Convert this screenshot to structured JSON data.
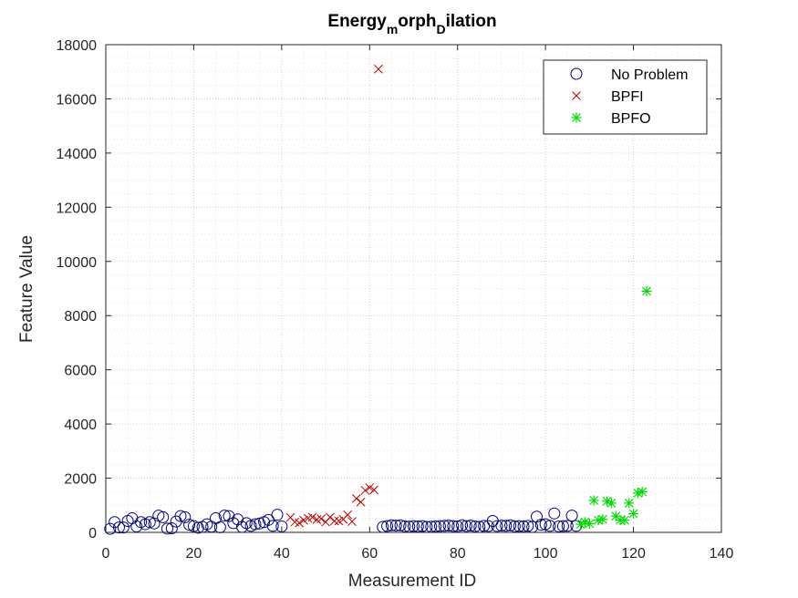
{
  "chart_data": {
    "type": "scatter",
    "title": {
      "base1": "Energy",
      "sub1": "m",
      "base2": "orph",
      "sub2": "D",
      "base3": "ilation"
    },
    "xlabel": "Measurement ID",
    "ylabel": "Feature Value",
    "xlim": [
      0,
      140
    ],
    "ylim": [
      0,
      18000
    ],
    "xticks": [
      "0",
      "20",
      "40",
      "60",
      "80",
      "100",
      "120",
      "140"
    ],
    "yticks": [
      "0",
      "2000",
      "4000",
      "6000",
      "8000",
      "10000",
      "12000",
      "14000",
      "16000",
      "18000"
    ],
    "grid": "major and minor, dotted",
    "legend_position": "top-right",
    "series": [
      {
        "name": "No Problem",
        "marker": "circle",
        "color": "#000080",
        "x": [
          1,
          2,
          3,
          4,
          5,
          6,
          7,
          8,
          9,
          10,
          11,
          12,
          13,
          14,
          15,
          16,
          17,
          18,
          19,
          20,
          21,
          22,
          23,
          24,
          25,
          26,
          27,
          28,
          29,
          30,
          31,
          32,
          33,
          34,
          35,
          36,
          37,
          38,
          39,
          40,
          63,
          64,
          65,
          66,
          67,
          68,
          69,
          70,
          71,
          72,
          73,
          74,
          75,
          76,
          77,
          78,
          79,
          80,
          81,
          82,
          83,
          84,
          85,
          86,
          87,
          88,
          89,
          90,
          91,
          92,
          93,
          94,
          95,
          96,
          97,
          98,
          99,
          100,
          101,
          102,
          103,
          104,
          105,
          106,
          107
        ],
        "y": [
          130,
          380,
          180,
          180,
          420,
          520,
          220,
          380,
          300,
          380,
          330,
          620,
          560,
          140,
          150,
          400,
          600,
          560,
          280,
          230,
          170,
          200,
          300,
          210,
          520,
          190,
          620,
          600,
          340,
          480,
          200,
          340,
          240,
          300,
          330,
          380,
          460,
          240,
          650,
          220,
          200,
          230,
          260,
          250,
          260,
          220,
          210,
          230,
          220,
          230,
          200,
          210,
          220,
          230,
          240,
          250,
          230,
          220,
          260,
          230,
          250,
          220,
          200,
          240,
          230,
          420,
          230,
          250,
          240,
          260,
          220,
          230,
          220,
          240,
          200,
          580,
          280,
          300,
          240,
          700,
          220,
          230,
          240,
          620,
          240
        ]
      },
      {
        "name": "BPFI",
        "marker": "x",
        "color": "#c00000",
        "x": [
          42,
          43,
          44,
          45,
          46,
          47,
          48,
          49,
          50,
          51,
          52,
          53,
          54,
          55,
          56,
          57,
          58,
          59,
          60,
          61,
          62
        ],
        "y": [
          550,
          380,
          350,
          450,
          520,
          560,
          470,
          500,
          380,
          560,
          420,
          420,
          480,
          650,
          400,
          1250,
          1120,
          1550,
          1650,
          1570,
          17100
        ]
      },
      {
        "name": "BPFO",
        "marker": "star",
        "color": "#00dd00",
        "x": [
          108,
          109,
          110,
          111,
          112,
          113,
          114,
          115,
          116,
          117,
          118,
          119,
          120,
          121,
          122,
          123
        ],
        "y": [
          300,
          380,
          320,
          1180,
          450,
          480,
          1150,
          1080,
          600,
          450,
          450,
          1080,
          690,
          1450,
          1500,
          8900
        ]
      }
    ]
  }
}
